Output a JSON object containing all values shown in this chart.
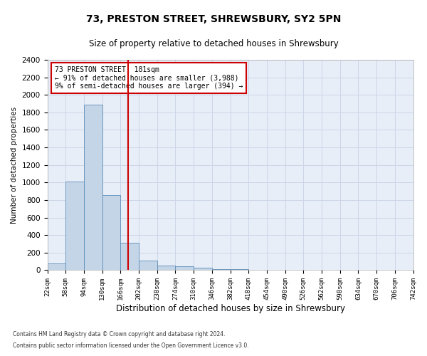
{
  "title1": "73, PRESTON STREET, SHREWSBURY, SY2 5PN",
  "title2": "Size of property relative to detached houses in Shrewsbury",
  "xlabel": "Distribution of detached houses by size in Shrewsbury",
  "ylabel": "Number of detached properties",
  "annotation_line1": "73 PRESTON STREET: 181sqm",
  "annotation_line2": "← 91% of detached houses are smaller (3,988)",
  "annotation_line3": "9% of semi-detached houses are larger (394) →",
  "bar_color": "#c5d5e8",
  "bar_edge_color": "#5b8db8",
  "vline_color": "#cc0000",
  "vline_x": 181,
  "bins_left": [
    22,
    58,
    94,
    130,
    166,
    202,
    238,
    274,
    310,
    346,
    382,
    418,
    454,
    490,
    526,
    562,
    598,
    634,
    670,
    706
  ],
  "bin_width": 36,
  "bar_heights": [
    80,
    1010,
    1890,
    860,
    310,
    110,
    50,
    45,
    30,
    15,
    10,
    0,
    0,
    0,
    0,
    0,
    0,
    0,
    0,
    0
  ],
  "ylim": [
    0,
    2400
  ],
  "yticks": [
    0,
    200,
    400,
    600,
    800,
    1000,
    1200,
    1400,
    1600,
    1800,
    2000,
    2200,
    2400
  ],
  "xtick_labels": [
    "22sqm",
    "58sqm",
    "94sqm",
    "130sqm",
    "166sqm",
    "202sqm",
    "238sqm",
    "274sqm",
    "310sqm",
    "346sqm",
    "382sqm",
    "418sqm",
    "454sqm",
    "490sqm",
    "526sqm",
    "562sqm",
    "598sqm",
    "634sqm",
    "670sqm",
    "706sqm",
    "742sqm"
  ],
  "grid_color": "#ccd6e8",
  "bg_color": "#e8eef8",
  "fig_bg": "#ffffff",
  "annotation_box_color": "#ffffff",
  "annotation_box_edge": "#cc0000",
  "footnote1": "Contains HM Land Registry data © Crown copyright and database right 2024.",
  "footnote2": "Contains public sector information licensed under the Open Government Licence v3.0."
}
